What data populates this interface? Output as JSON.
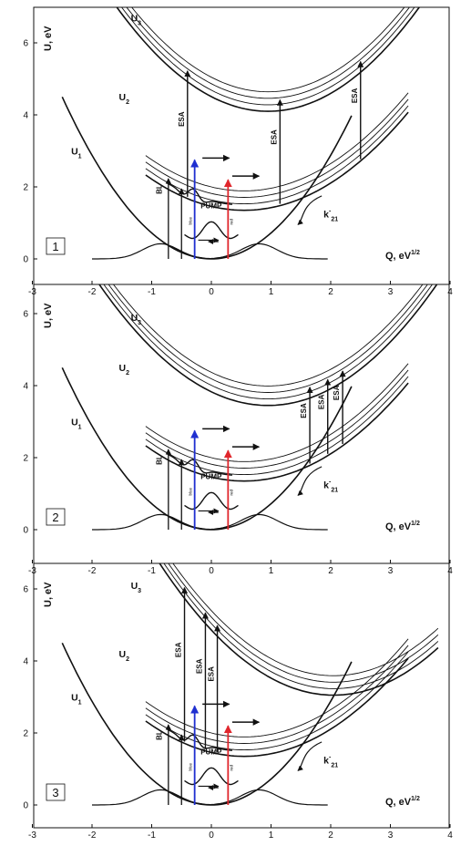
{
  "figure": {
    "axis_x_label": "Q, eV",
    "axis_x_label_sup": "1/2",
    "axis_y_label": "U, eV",
    "curve_labels": {
      "u1": "U",
      "u1_sub": "1",
      "u2": "U",
      "u2_sub": "2",
      "u3": "U",
      "u3_sub": "3"
    },
    "rate_label": "k",
    "rate_label_sup": "-",
    "rate_label_sub": "21",
    "bl_label": "BL",
    "esa_label": "ESA",
    "pump_label": "PUMP",
    "blue_label": "blue",
    "red_label": "red",
    "x_ticks": [
      "-3",
      "-2",
      "-1",
      "0",
      "1",
      "2",
      "3",
      "4"
    ],
    "y_ticks": [
      "0",
      "2",
      "4",
      "6"
    ],
    "colors": {
      "blue_pump": "#1f2fd0",
      "red_pump": "#e0262c",
      "ink": "#111111"
    },
    "panels": [
      {
        "number": "1"
      },
      {
        "number": "2"
      },
      {
        "number": "3"
      }
    ]
  }
}
